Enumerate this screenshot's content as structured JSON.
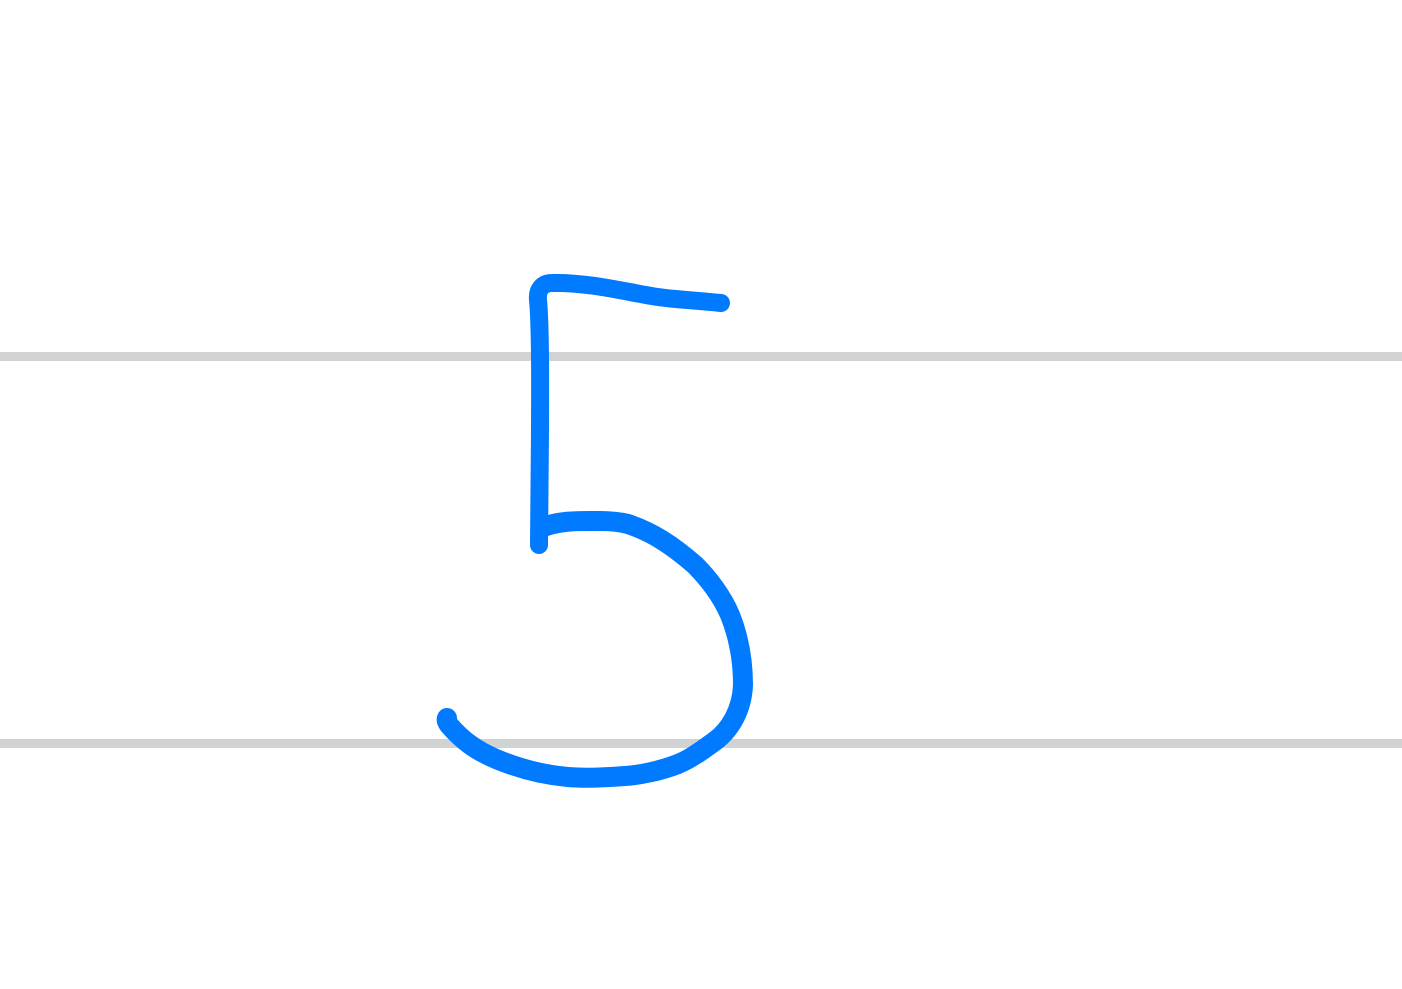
{
  "canvas": {
    "background_color": "#ffffff",
    "guide_line_color": "#d1d2d4"
  },
  "stroke": {
    "ink_color": "#007aff",
    "drawn_character": "5"
  }
}
